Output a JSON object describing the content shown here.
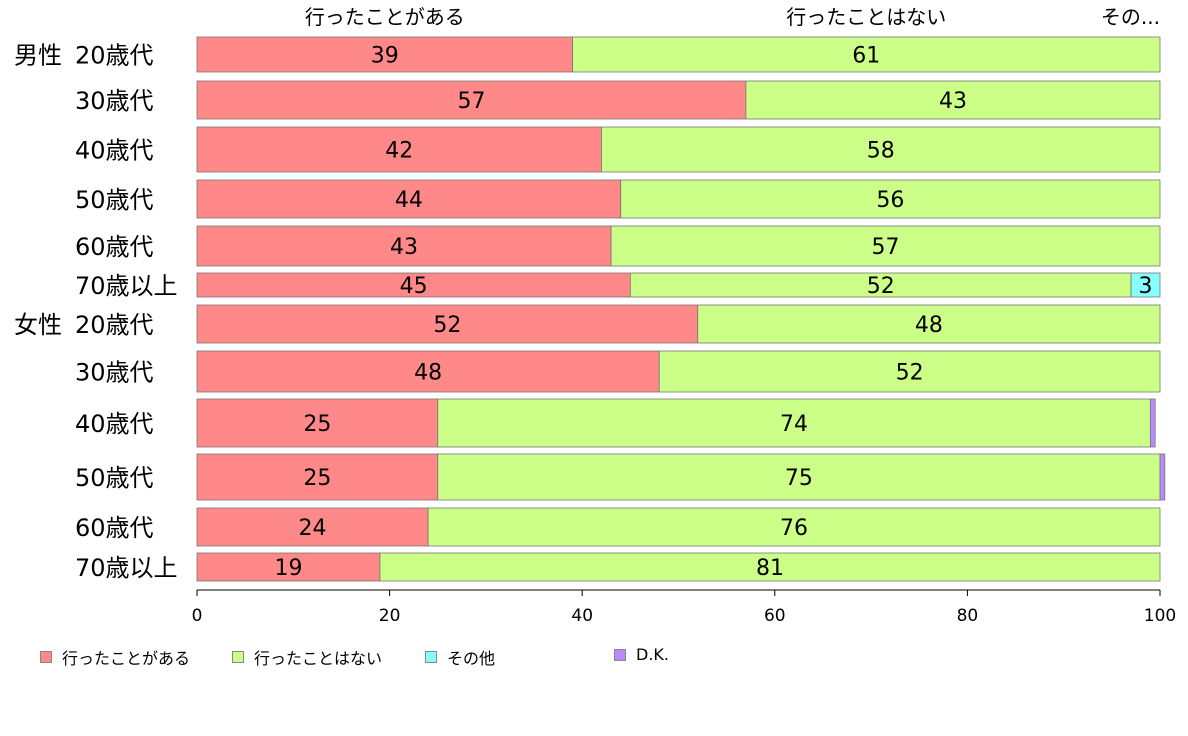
{
  "chart_data": {
    "type": "bar",
    "orientation": "horizontal",
    "stacked": true,
    "groups": [
      {
        "label": "男性",
        "start_index": 0
      },
      {
        "label": "女性",
        "start_index": 6
      }
    ],
    "categories": [
      "20歳代",
      "30歳代",
      "40歳代",
      "50歳代",
      "60歳代",
      "70歳以上",
      "20歳代",
      "30歳代",
      "40歳代",
      "50歳代",
      "60歳代",
      "70歳以上"
    ],
    "series": [
      {
        "name": "行ったことがある",
        "color": "#ff8888",
        "values": [
          39,
          57,
          42,
          44,
          43,
          45,
          52,
          48,
          25,
          25,
          24,
          19
        ]
      },
      {
        "name": "行ったことはない",
        "color": "#ccff88",
        "values": [
          61,
          43,
          58,
          56,
          57,
          52,
          48,
          52,
          74,
          75,
          76,
          81
        ]
      },
      {
        "name": "その他",
        "color": "#88ffff",
        "values": [
          0,
          0,
          0,
          0,
          0,
          3,
          0,
          0,
          0,
          0,
          0,
          0
        ]
      },
      {
        "name": "D.K.",
        "color": "#bb88ff",
        "values": [
          0,
          0,
          0,
          0,
          0,
          0,
          0,
          0,
          0.5,
          0.5,
          0,
          0
        ]
      }
    ],
    "data_labels": [
      [
        "39",
        "57",
        "42",
        "44",
        "43",
        "45",
        "52",
        "48",
        "25",
        "25",
        "24",
        "19"
      ],
      [
        "61",
        "43",
        "58",
        "56",
        "57",
        "52",
        "48",
        "52",
        "74",
        "75",
        "76",
        "81"
      ],
      [
        "",
        "",
        "",
        "",
        "",
        "3",
        "",
        "",
        "",
        "",
        "",
        ""
      ],
      [
        "",
        "",
        "",
        "",
        "",
        "",
        "",
        "",
        "",
        "",
        "",
        ""
      ]
    ],
    "top_labels": [
      "行ったことがある",
      "行ったことはない",
      "その..."
    ],
    "xlim": [
      0,
      100
    ],
    "xticks": [
      0,
      20,
      40,
      60,
      80,
      100
    ],
    "grid": false,
    "legend_position": "bottom-left"
  }
}
